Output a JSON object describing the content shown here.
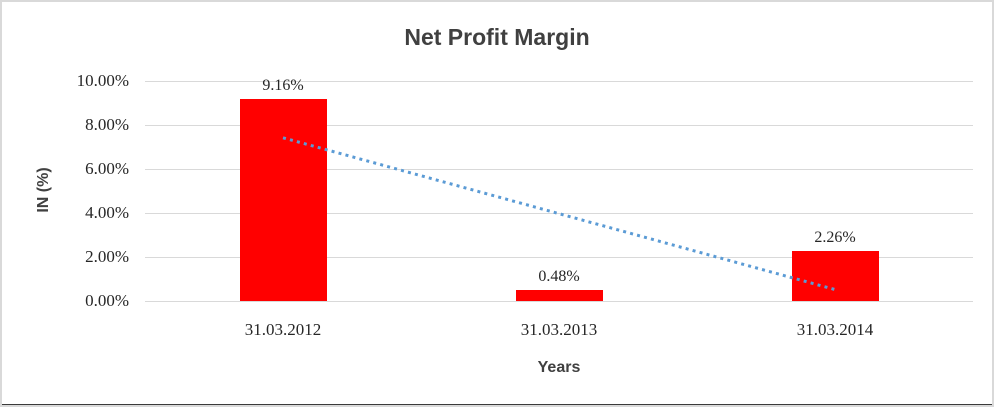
{
  "chart_data": {
    "type": "bar",
    "title": "Net Profit Margin",
    "categories": [
      "31.03.2012",
      "31.03.2013",
      "31.03.2014"
    ],
    "values": [
      9.16,
      0.48,
      2.26
    ],
    "value_labels": [
      "9.16%",
      "0.48%",
      "2.26%"
    ],
    "xlabel": "Years",
    "ylabel": "IN (%)",
    "ylim": [
      0,
      10
    ],
    "ytick_step": 2,
    "ytick_labels": [
      "0.00%",
      "2.00%",
      "4.00%",
      "6.00%",
      "8.00%",
      "10.00%"
    ],
    "grid": true,
    "legend": "none",
    "bar_color": "#FF0000",
    "gridline_color": "#D9D9D9",
    "text_color": "#262626",
    "title_color": "#404040",
    "trendline": {
      "type": "linear",
      "style": "dotted",
      "color": "#5B9BD5",
      "start_value": 7.42,
      "end_value": 0.52,
      "start_category_index": 0,
      "end_category_index": 2
    }
  }
}
